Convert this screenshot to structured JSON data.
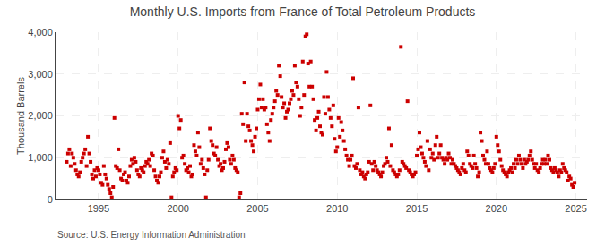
{
  "chart_data": {
    "type": "scatter",
    "title": "Monthly U.S. Imports from France of Total Petroleum Products",
    "ylabel": "Thousand Barrels",
    "source": "Source: U.S. Energy Information Administration",
    "color": "#cc0000",
    "marker": "square",
    "grid": true,
    "xlim": [
      1992.3,
      2025.7
    ],
    "xticks": [
      1995,
      2000,
      2005,
      2010,
      2015,
      2020,
      2025
    ],
    "ylim": [
      0,
      4000
    ],
    "yticks": [
      0,
      {
        "value": 1000,
        "label": "1,000"
      },
      {
        "value": 2000,
        "label": "2,000"
      },
      {
        "value": 3000,
        "label": "3,000"
      },
      {
        "value": 4000,
        "label": "4,000"
      }
    ],
    "x": [
      1993.0,
      1993.083,
      1993.167,
      1993.25,
      1993.333,
      1993.417,
      1993.5,
      1993.583,
      1993.667,
      1993.75,
      1993.833,
      1993.917,
      1994.0,
      1994.083,
      1994.167,
      1994.25,
      1994.333,
      1994.417,
      1994.5,
      1994.583,
      1994.667,
      1994.75,
      1994.833,
      1994.917,
      1995.0,
      1995.083,
      1995.167,
      1995.25,
      1995.333,
      1995.417,
      1995.5,
      1995.583,
      1995.667,
      1995.75,
      1995.833,
      1995.917,
      1996.0,
      1996.083,
      1996.167,
      1996.25,
      1996.333,
      1996.417,
      1996.5,
      1996.583,
      1996.667,
      1996.75,
      1996.833,
      1996.917,
      1997.0,
      1997.083,
      1997.167,
      1997.25,
      1997.333,
      1997.417,
      1997.5,
      1997.583,
      1997.667,
      1997.75,
      1997.833,
      1997.917,
      1998.0,
      1998.083,
      1998.167,
      1998.25,
      1998.333,
      1998.417,
      1998.5,
      1998.583,
      1998.667,
      1998.75,
      1998.833,
      1998.917,
      1999.0,
      1999.083,
      1999.167,
      1999.25,
      1999.333,
      1999.417,
      1999.5,
      1999.583,
      1999.667,
      1999.75,
      1999.833,
      1999.917,
      2000.0,
      2000.083,
      2000.167,
      2000.25,
      2000.333,
      2000.417,
      2000.5,
      2000.583,
      2000.667,
      2000.75,
      2000.833,
      2000.917,
      2001.0,
      2001.083,
      2001.167,
      2001.25,
      2001.333,
      2001.417,
      2001.5,
      2001.583,
      2001.667,
      2001.75,
      2001.833,
      2001.917,
      2002.0,
      2002.083,
      2002.167,
      2002.25,
      2002.333,
      2002.417,
      2002.5,
      2002.583,
      2002.667,
      2002.75,
      2002.833,
      2002.917,
      2003.0,
      2003.083,
      2003.167,
      2003.25,
      2003.333,
      2003.417,
      2003.5,
      2003.583,
      2003.667,
      2003.75,
      2003.833,
      2003.917,
      2004.0,
      2004.083,
      2004.167,
      2004.25,
      2004.333,
      2004.417,
      2004.5,
      2004.583,
      2004.667,
      2004.75,
      2004.833,
      2004.917,
      2005.0,
      2005.083,
      2005.167,
      2005.25,
      2005.333,
      2005.417,
      2005.5,
      2005.583,
      2005.667,
      2005.75,
      2005.833,
      2005.917,
      2006.0,
      2006.083,
      2006.167,
      2006.25,
      2006.333,
      2006.417,
      2006.5,
      2006.583,
      2006.667,
      2006.75,
      2006.833,
      2006.917,
      2007.0,
      2007.083,
      2007.167,
      2007.25,
      2007.333,
      2007.417,
      2007.5,
      2007.583,
      2007.667,
      2007.75,
      2007.833,
      2007.917,
      2008.0,
      2008.083,
      2008.167,
      2008.25,
      2008.333,
      2008.417,
      2008.5,
      2008.583,
      2008.667,
      2008.75,
      2008.833,
      2008.917,
      2009.0,
      2009.083,
      2009.167,
      2009.25,
      2009.333,
      2009.417,
      2009.5,
      2009.583,
      2009.667,
      2009.75,
      2009.833,
      2009.917,
      2010.0,
      2010.083,
      2010.167,
      2010.25,
      2010.333,
      2010.417,
      2010.5,
      2010.583,
      2010.667,
      2010.75,
      2010.833,
      2010.917,
      2011.0,
      2011.083,
      2011.167,
      2011.25,
      2011.333,
      2011.417,
      2011.5,
      2011.583,
      2011.667,
      2011.75,
      2011.833,
      2011.917,
      2012.0,
      2012.083,
      2012.167,
      2012.25,
      2012.333,
      2012.417,
      2012.5,
      2012.583,
      2012.667,
      2012.75,
      2012.833,
      2012.917,
      2013.0,
      2013.083,
      2013.167,
      2013.25,
      2013.333,
      2013.417,
      2013.5,
      2013.583,
      2013.667,
      2013.75,
      2013.833,
      2013.917,
      2014.0,
      2014.083,
      2014.167,
      2014.25,
      2014.333,
      2014.417,
      2014.5,
      2014.583,
      2014.667,
      2014.75,
      2014.833,
      2014.917,
      2015.0,
      2015.083,
      2015.167,
      2015.25,
      2015.333,
      2015.417,
      2015.5,
      2015.583,
      2015.667,
      2015.75,
      2015.833,
      2015.917,
      2016.0,
      2016.083,
      2016.167,
      2016.25,
      2016.333,
      2016.417,
      2016.5,
      2016.583,
      2016.667,
      2016.75,
      2016.833,
      2016.917,
      2017.0,
      2017.083,
      2017.167,
      2017.25,
      2017.333,
      2017.417,
      2017.5,
      2017.583,
      2017.667,
      2017.75,
      2017.833,
      2017.917,
      2018.0,
      2018.083,
      2018.167,
      2018.25,
      2018.333,
      2018.417,
      2018.5,
      2018.583,
      2018.667,
      2018.75,
      2018.833,
      2018.917,
      2019.0,
      2019.083,
      2019.167,
      2019.25,
      2019.333,
      2019.417,
      2019.5,
      2019.583,
      2019.667,
      2019.75,
      2019.833,
      2019.917,
      2020.0,
      2020.083,
      2020.167,
      2020.25,
      2020.333,
      2020.417,
      2020.5,
      2020.583,
      2020.667,
      2020.75,
      2020.833,
      2020.917,
      2021.0,
      2021.083,
      2021.167,
      2021.25,
      2021.333,
      2021.417,
      2021.5,
      2021.583,
      2021.667,
      2021.75,
      2021.833,
      2021.917,
      2022.0,
      2022.083,
      2022.167,
      2022.25,
      2022.333,
      2022.417,
      2022.5,
      2022.583,
      2022.667,
      2022.75,
      2022.833,
      2022.917,
      2023.0,
      2023.083,
      2023.167,
      2023.25,
      2023.333,
      2023.417,
      2023.5,
      2023.583,
      2023.667,
      2023.75,
      2023.833,
      2023.917,
      2024.0,
      2024.083,
      2024.167,
      2024.25,
      2024.333,
      2024.417,
      2024.5,
      2024.583,
      2024.667,
      2024.75,
      2024.833,
      2024.917
    ],
    "values": [
      900,
      1100,
      1200,
      800,
      1100,
      1000,
      850,
      700,
      600,
      550,
      650,
      900,
      1000,
      1100,
      1200,
      800,
      1500,
      1100,
      900,
      600,
      500,
      700,
      550,
      750,
      700,
      600,
      400,
      350,
      800,
      600,
      500,
      350,
      250,
      150,
      50,
      300,
      1950,
      800,
      750,
      1200,
      700,
      500,
      450,
      600,
      650,
      450,
      400,
      550,
      800,
      950,
      850,
      1000,
      900,
      700,
      600,
      550,
      750,
      700,
      650,
      800,
      900,
      850,
      950,
      800,
      1100,
      1050,
      700,
      550,
      450,
      400,
      550,
      650,
      1000,
      1150,
      900,
      750,
      950,
      850,
      1350,
      50,
      550,
      650,
      750,
      700,
      2000,
      1700,
      1900,
      1000,
      1050,
      850,
      700,
      750,
      650,
      800,
      550,
      600,
      1300,
      1150,
      1050,
      1600,
      1250,
      850,
      950,
      750,
      600,
      50,
      700,
      950,
      1700,
      1400,
      1300,
      1100,
      1050,
      1250,
      950,
      800,
      850,
      700,
      750,
      900,
      1200,
      1350,
      1250,
      950,
      850,
      1050,
      950,
      750,
      700,
      650,
      50,
      150,
      2050,
      1800,
      2800,
      1400,
      2050,
      1750,
      1650,
      1400,
      1300,
      1150,
      1500,
      1700,
      2150,
      2400,
      2750,
      2200,
      2400,
      2150,
      2200,
      1800,
      1600,
      1400,
      1900,
      2050,
      2200,
      2350,
      2600,
      2500,
      3200,
      2950,
      2450,
      2200,
      2300,
      1950,
      2100,
      2150,
      2300,
      2400,
      2600,
      2500,
      3200,
      2800,
      2700,
      2400,
      2000,
      2200,
      3300,
      2500,
      3900,
      3950,
      3250,
      2700,
      3300,
      2700,
      2400,
      1900,
      1650,
      1950,
      2100,
      1750,
      1600,
      1550,
      2450,
      2050,
      3050,
      2450,
      2150,
      1950,
      1750,
      2250,
      1450,
      1150,
      1250,
      1950,
      1500,
      1850,
      1650,
      1400,
      1200,
      1050,
      950,
      800,
      950,
      1050,
      2900,
      800,
      750,
      850,
      2200,
      700,
      600,
      650,
      550,
      500,
      600,
      650,
      900,
      2250,
      850,
      700,
      900,
      800,
      700,
      650,
      600,
      550,
      650,
      800,
      850,
      1000,
      900,
      1700,
      800,
      1300,
      700,
      650,
      600,
      550,
      600,
      700,
      3650,
      900,
      850,
      800,
      750,
      2350,
      700,
      650,
      600,
      550,
      600,
      650,
      1050,
      1200,
      1600,
      1250,
      1100,
      1000,
      900,
      800,
      1400,
      700,
      1200,
      1000,
      1100,
      950,
      1300,
      1500,
      1000,
      1100,
      1300,
      1000,
      950,
      850,
      1000,
      950,
      1100,
      1000,
      850,
      950,
      850,
      800,
      750,
      700,
      650,
      600,
      750,
      850,
      700,
      650,
      1150,
      1050,
      850,
      800,
      750,
      1050,
      850,
      750,
      550,
      650,
      1600,
      1400,
      1050,
      950,
      850,
      1150,
      850,
      750,
      700,
      650,
      750,
      850,
      1500,
      1300,
      1150,
      950,
      800,
      700,
      650,
      600,
      550,
      650,
      700,
      750,
      650,
      850,
      750,
      950,
      850,
      1050,
      950,
      850,
      750,
      950,
      850,
      900,
      950,
      1050,
      1150,
      950,
      850,
      750,
      850,
      700,
      650,
      750,
      850,
      950,
      850,
      950,
      850,
      1050,
      950,
      750,
      700,
      650,
      750,
      700,
      650,
      550,
      700,
      650,
      850,
      750,
      700,
      650,
      450,
      550,
      500,
      350,
      300,
      400
    ]
  }
}
